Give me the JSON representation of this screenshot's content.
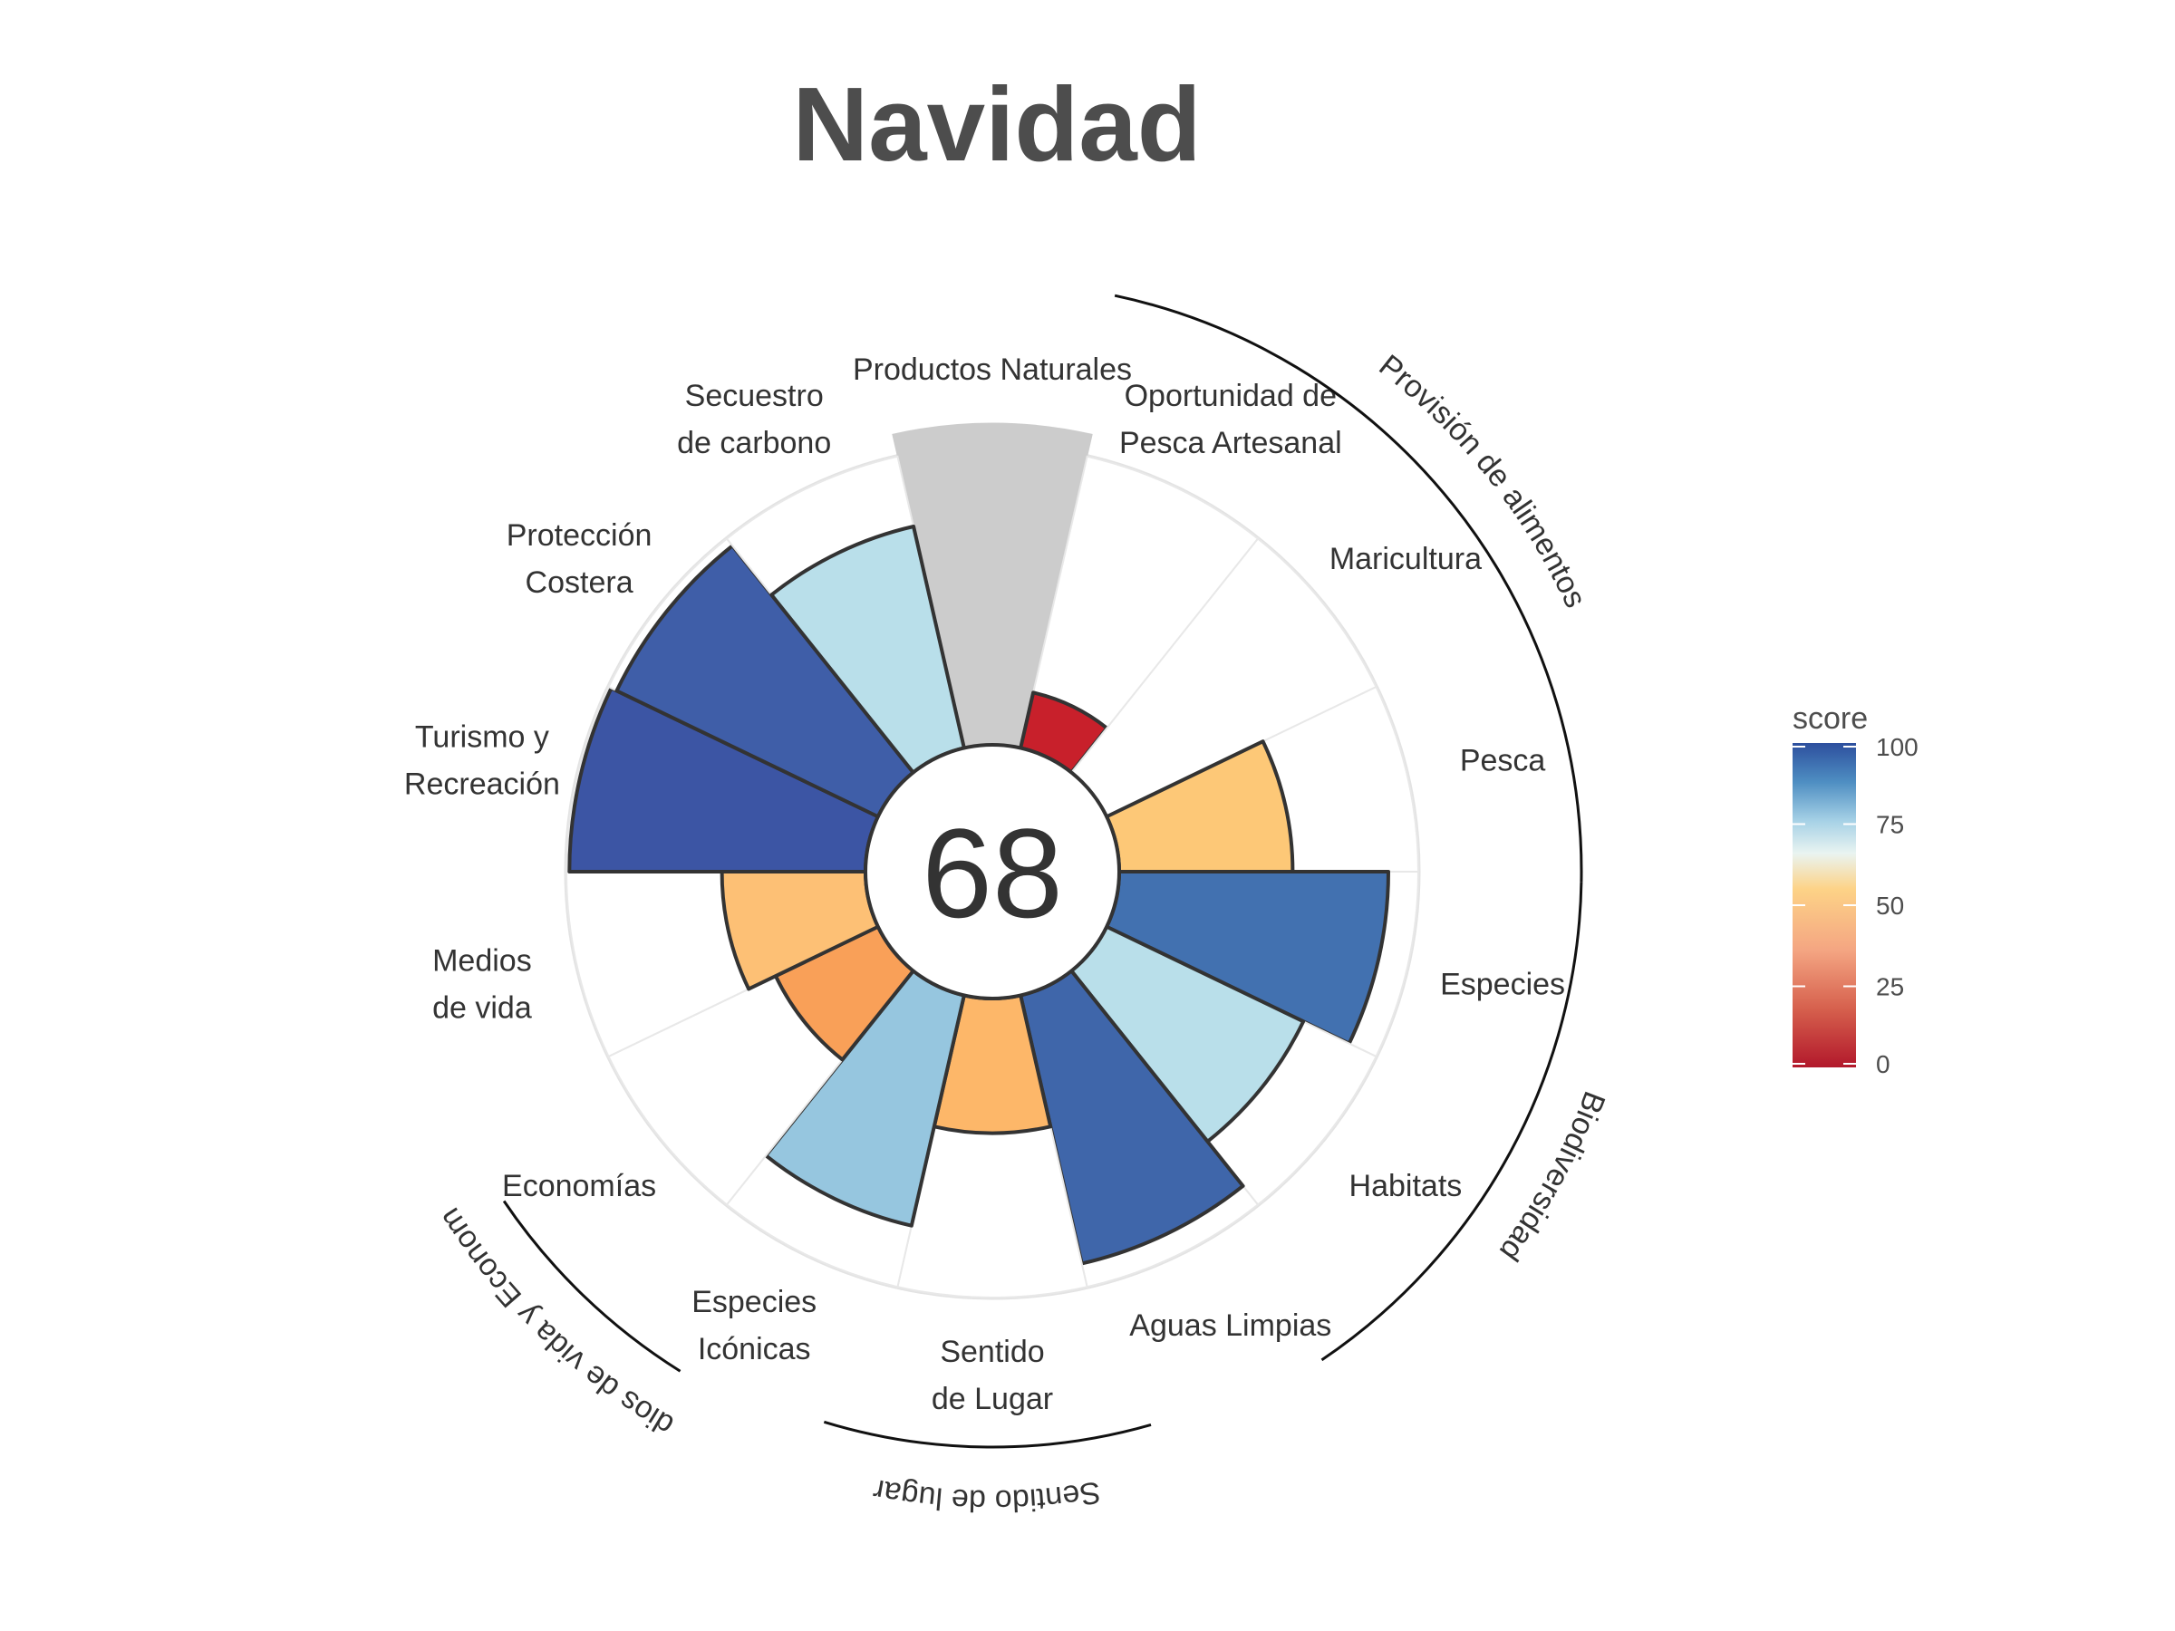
{
  "title": "Navidad",
  "center_score": "68",
  "legend": {
    "title": "score",
    "ticks": [
      "0",
      "25",
      "50",
      "75",
      "100"
    ],
    "tick_values": [
      0,
      25,
      50,
      75,
      100
    ],
    "colors": [
      "#b2182b",
      "#d6604d",
      "#f4a582",
      "#fddb87",
      "#ddeff6",
      "#92c5de",
      "#4393c3",
      "#2d4f9e"
    ]
  },
  "chart_data": {
    "type": "flower",
    "title": "Navidad",
    "center_value": 68,
    "scale": [
      0,
      100
    ],
    "petals": [
      {
        "label": [
          "Productos Naturales"
        ],
        "value": null,
        "color": "#cccccc",
        "missing": true
      },
      {
        "label": [
          "Oportunidad de",
          "Pesca Artesanal"
        ],
        "value": 19,
        "color": "#c8202b"
      },
      {
        "label": [
          "Maricultura"
        ],
        "value": 0,
        "color": "#ffffff"
      },
      {
        "label": [
          "Pesca"
        ],
        "value": 58,
        "color": "#fdc877"
      },
      {
        "label": [
          "Especies"
        ],
        "value": 90,
        "color": "#4271b0"
      },
      {
        "label": [
          "Habitats"
        ],
        "value": 73,
        "color": "#b9dfea"
      },
      {
        "label": [
          "Aguas Limpias"
        ],
        "value": 92,
        "color": "#3f66aa"
      },
      {
        "label": [
          "Sentido",
          "de Lugar"
        ],
        "value": 45,
        "color": "#fdb769"
      },
      {
        "label": [
          "Especies",
          "Icónicas"
        ],
        "value": 79,
        "color": "#96c6df"
      },
      {
        "label": [
          "Economías"
        ],
        "value": 38,
        "color": "#f9a058"
      },
      {
        "label": [
          "Medios",
          "de vida"
        ],
        "value": 48,
        "color": "#fdc075"
      },
      {
        "label": [
          "Turismo y",
          "Recreación"
        ],
        "value": 99,
        "color": "#3c55a4"
      },
      {
        "label": [
          "Protección",
          "Costera"
        ],
        "value": 97,
        "color": "#3f5ea8"
      },
      {
        "label": [
          "Secuestro",
          "de carbono"
        ],
        "value": 76,
        "color": "#b9dfea"
      }
    ],
    "groups": [
      {
        "label": "Provisión de alimentos",
        "petals": [
          "Oportunidad de Pesca Artesanal",
          "Maricultura",
          "Pesca"
        ]
      },
      {
        "label": "Biodiversidad",
        "petals": [
          "Especies",
          "Habitats"
        ]
      },
      {
        "label": "Sentido de lugar",
        "petals": [
          "Sentido de Lugar",
          "Especies Icónicas"
        ]
      },
      {
        "label": "Medios de vida y Economías",
        "petals": [
          "Economías",
          "Medios de vida"
        ]
      }
    ]
  }
}
